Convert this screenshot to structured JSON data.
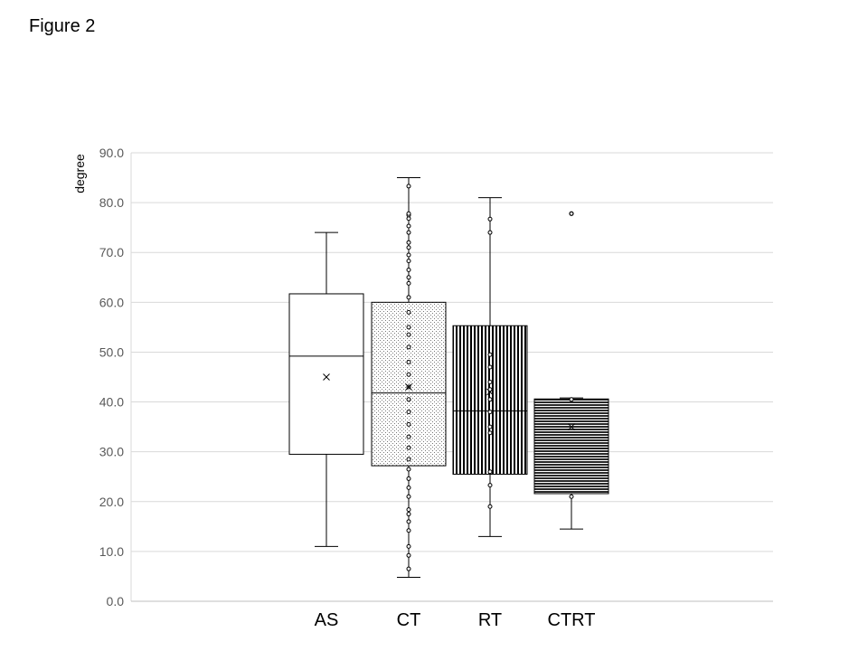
{
  "figure_label": "Figure 2",
  "chart_data": {
    "type": "box",
    "title": "",
    "xlabel": "",
    "ylabel": "degree",
    "ylim": [
      0,
      90
    ],
    "yticks": [
      0,
      10,
      20,
      30,
      40,
      50,
      60,
      70,
      80,
      90
    ],
    "ytick_labels": [
      "0.0",
      "10.0",
      "20.0",
      "30.0",
      "40.0",
      "50.0",
      "60.0",
      "70.0",
      "80.0",
      "90.0"
    ],
    "grid": true,
    "categories": [
      "AS",
      "CT",
      "RT",
      "CTRT"
    ],
    "boxes": [
      {
        "name": "AS",
        "pattern": "none",
        "min": 11.0,
        "q1": 29.5,
        "median": 49.2,
        "q3": 61.7,
        "max": 74.0,
        "mean": 45.0,
        "points": []
      },
      {
        "name": "CT",
        "pattern": "dots",
        "min": 4.8,
        "q1": 27.2,
        "median": 41.8,
        "q3": 60.0,
        "max": 85.0,
        "mean": 43.0,
        "points": [
          6.5,
          9.2,
          11.0,
          14.2,
          16.0,
          17.5,
          18.4,
          21.0,
          22.8,
          24.6,
          26.5,
          28.5,
          30.8,
          33.0,
          35.5,
          38.0,
          40.5,
          43.0,
          45.5,
          48.0,
          51.0,
          53.5,
          55.0,
          58.0,
          61.0,
          63.8,
          65.0,
          66.5,
          68.3,
          69.5,
          71.0,
          72.0,
          74.0,
          75.3,
          76.8,
          77.5,
          77.8,
          83.3
        ]
      },
      {
        "name": "RT",
        "pattern": "vertical-lines",
        "min": 13.0,
        "q1": 25.5,
        "median": 38.2,
        "q3": 55.3,
        "max": 81.0,
        "mean": 42.0,
        "points": [
          19.0,
          23.3,
          26.0,
          33.8,
          35.0,
          38.0,
          40.5,
          42.5,
          44.0,
          47.0,
          49.5,
          74.0,
          76.7
        ]
      },
      {
        "name": "CTRT",
        "pattern": "horizontal-lines",
        "min": 14.5,
        "q1": 21.6,
        "median": 30.7,
        "q3": 40.6,
        "max": 40.8,
        "mean": 35.0,
        "points": [
          21.0,
          40.5
        ],
        "outliers": [
          77.8
        ]
      }
    ]
  }
}
